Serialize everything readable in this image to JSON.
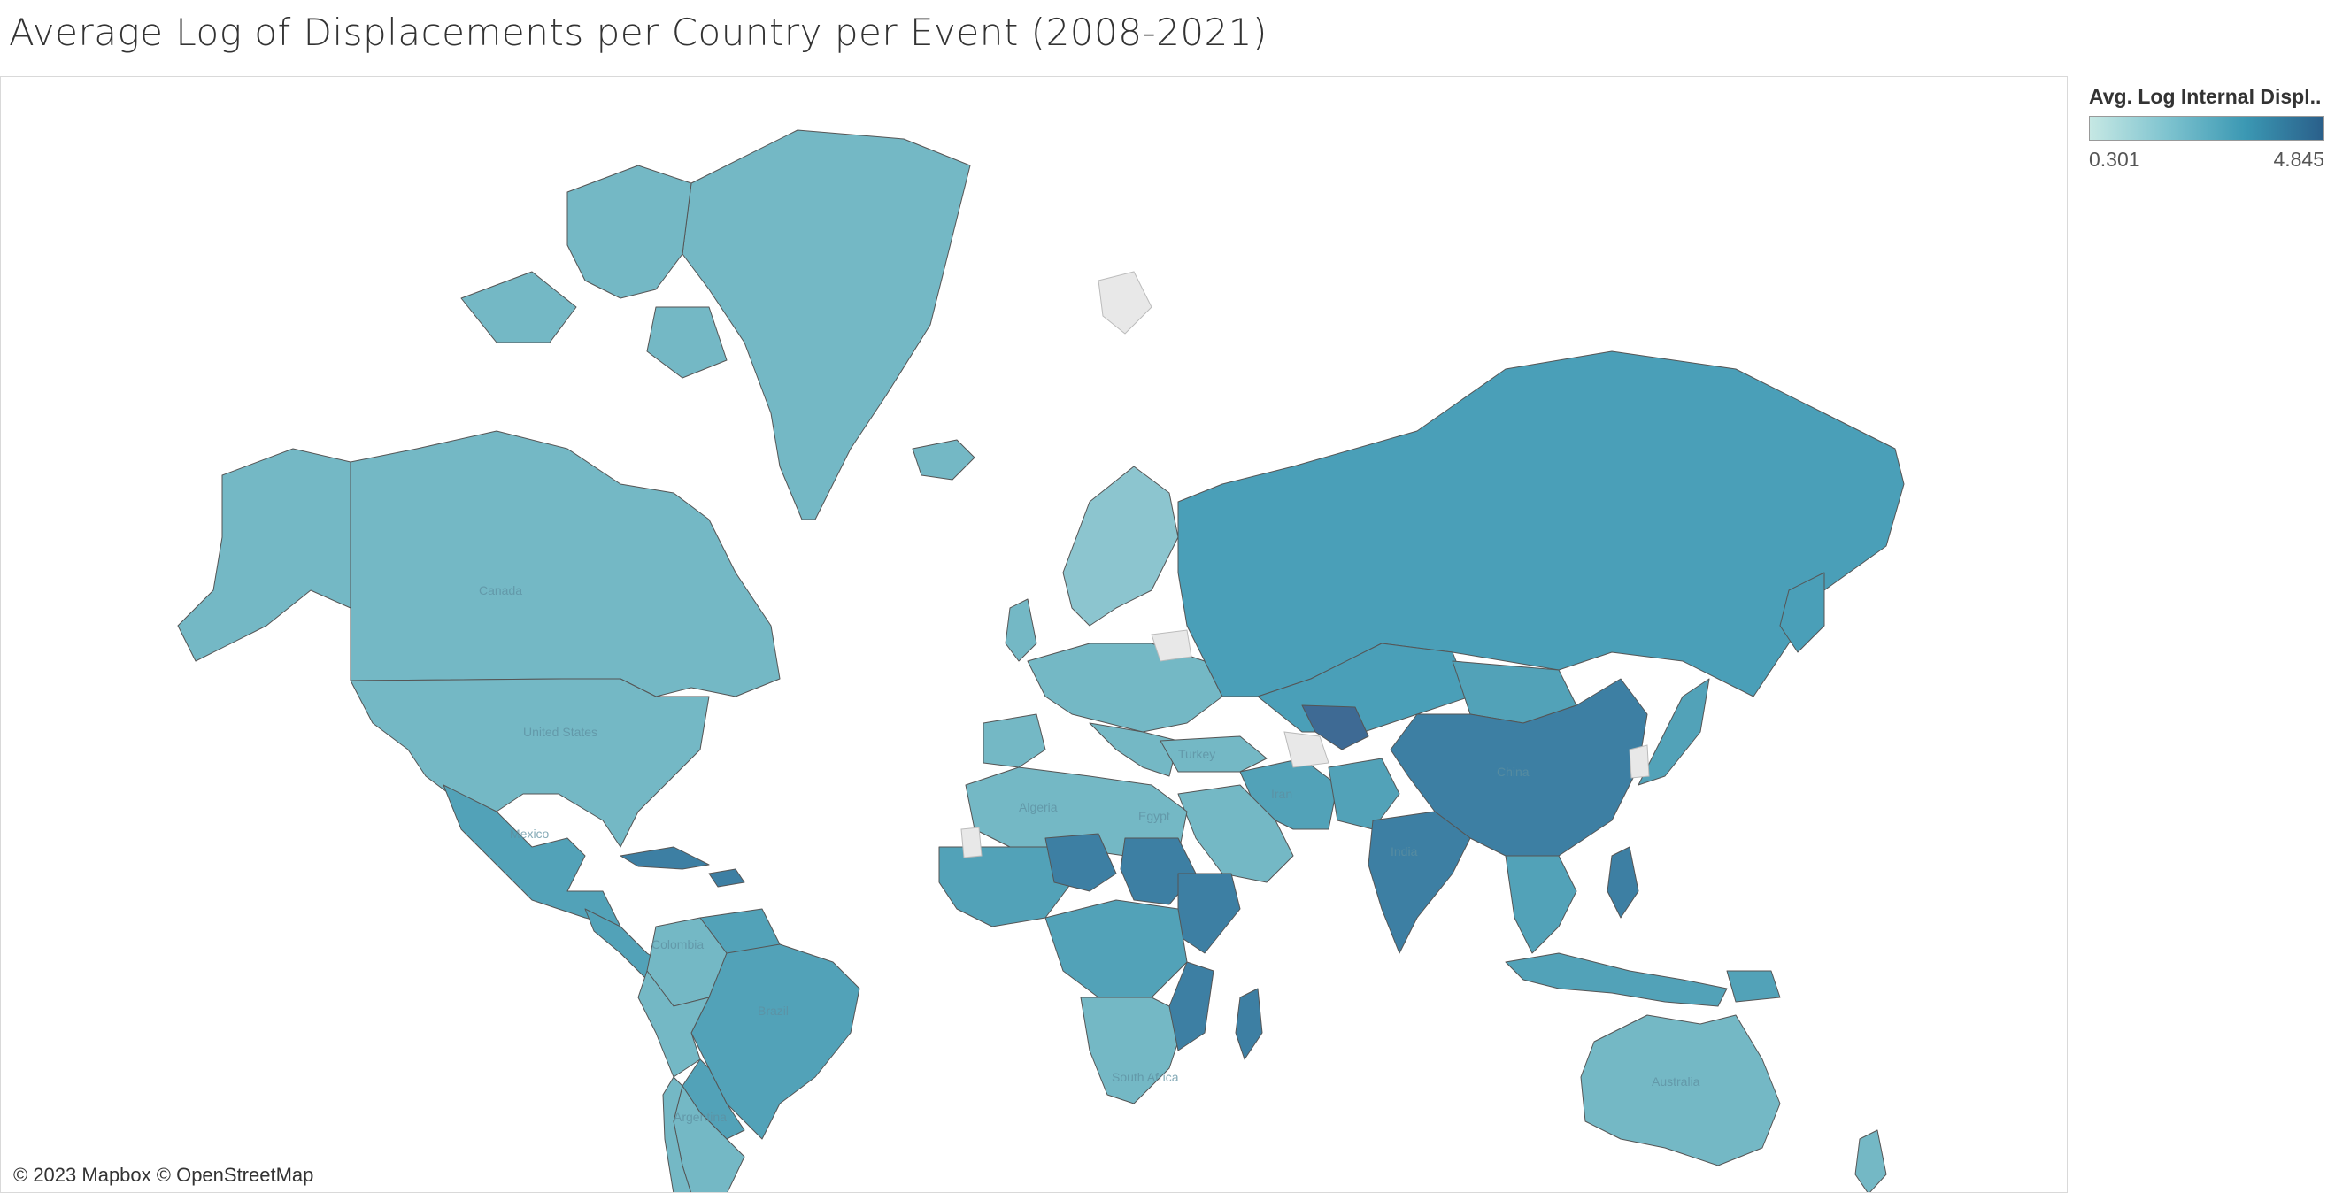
{
  "title": "Average Log of Displacements per Country per Event (2008-2021)",
  "legend": {
    "title": "Avg. Log Internal Displ..",
    "min_label": "0.301",
    "max_label": "4.845",
    "color_low": "#c6e8e4",
    "color_high": "#2a5f8a"
  },
  "attribution": "© 2023 Mapbox © OpenStreetMap",
  "map_labels": {
    "canada": "Canada",
    "united_states": "United States",
    "mexico": "Mexico",
    "colombia": "Colombia",
    "brazil": "Brazil",
    "argentina": "Argentina",
    "algeria": "Algeria",
    "egypt": "Egypt",
    "south_africa": "South Africa",
    "turkey": "Turkey",
    "iran": "Iran",
    "india": "India",
    "china": "China",
    "australia": "Australia"
  },
  "colors": {
    "light": "#74b8c5",
    "mid": "#52a2b8",
    "russia": "#4a9fb8",
    "dark": "#3d7fa3",
    "darkest": "#3e6a94",
    "nodata": "#e8e8e8",
    "border": "#555555"
  }
}
